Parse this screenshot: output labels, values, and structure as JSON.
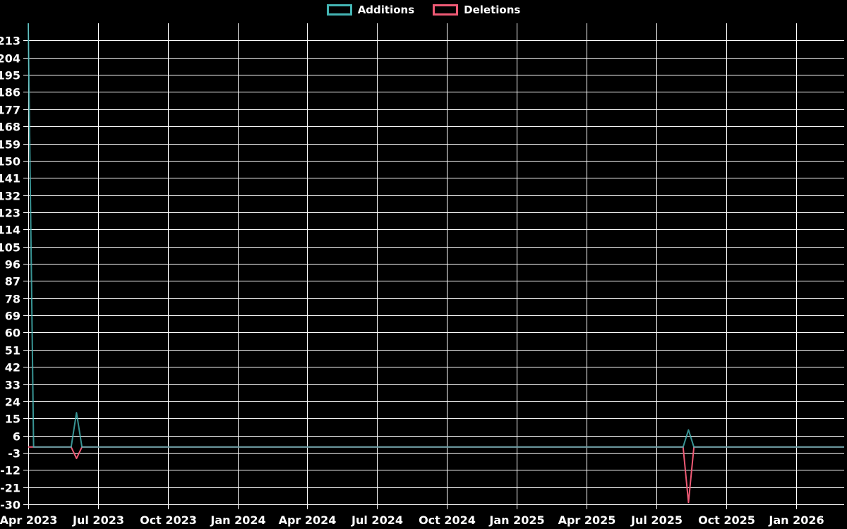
{
  "legend": {
    "items": [
      {
        "id": "additions",
        "label": "Additions",
        "color": "#44b5b4"
      },
      {
        "id": "deletions",
        "label": "Deletions",
        "color": "#ef5a75"
      }
    ]
  },
  "chart_data": {
    "type": "line",
    "title": "",
    "xlabel": "",
    "ylabel": "",
    "legend_position": "top-center",
    "grid": true,
    "colors": {
      "background": "#000000",
      "grid": "#ffffff",
      "text": "#ffffff",
      "additions": "#44b5b4",
      "deletions": "#ef5a75"
    },
    "x_axis": {
      "unit": "week",
      "range_weeks": [
        0,
        152
      ],
      "tick_weeks": [
        0,
        13,
        26,
        39,
        52,
        65,
        78,
        91,
        104,
        117,
        130,
        143
      ],
      "tick_labels": [
        "Apr 2023",
        "Jul 2023",
        "Oct 2023",
        "Jan 2024",
        "Apr 2024",
        "Jul 2024",
        "Oct 2024",
        "Jan 2025",
        "Apr 2025",
        "Jul 2025",
        "Oct 2025",
        "Jan 2026"
      ]
    },
    "y_axis": {
      "range": [
        -30,
        222
      ],
      "tick_step": 9,
      "ticks": [
        213,
        204,
        195,
        186,
        177,
        168,
        159,
        150,
        141,
        132,
        123,
        114,
        105,
        96,
        87,
        78,
        69,
        60,
        51,
        42,
        33,
        24,
        15,
        6,
        -3,
        -12,
        -21,
        -30
      ]
    },
    "series": [
      {
        "name": "Additions",
        "color": "#44b5b4",
        "baseline_value": 0,
        "nonzero_points": [
          {
            "week": 0,
            "value": 222
          },
          {
            "week": 9,
            "value": 18
          },
          {
            "week": 123,
            "value": 9
          }
        ]
      },
      {
        "name": "Deletions",
        "color": "#ef5a75",
        "baseline_value": 0,
        "nonzero_points": [
          {
            "week": 9,
            "value": -6
          },
          {
            "week": 123,
            "value": -29
          }
        ]
      }
    ]
  }
}
